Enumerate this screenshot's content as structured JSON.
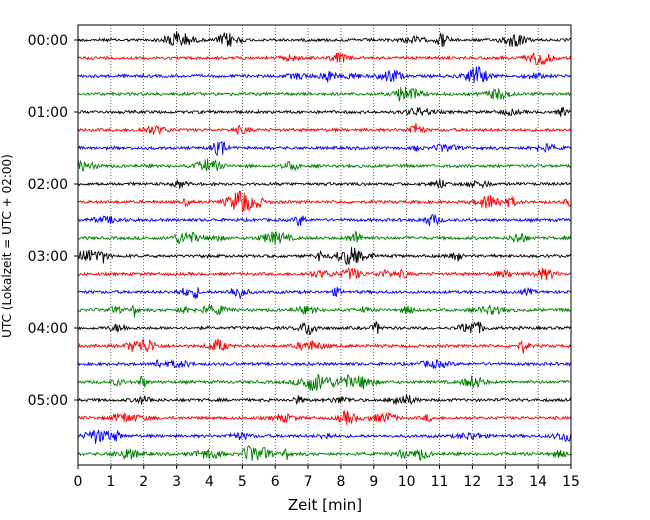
{
  "chart_data": {
    "type": "line",
    "subtype": "helicorder seismogram",
    "xlabel": "Zeit  [min]",
    "ylabel": "UTC (Lokalzeit = UTC + 02:00)",
    "xlim": [
      0,
      15
    ],
    "x_ticks": [
      "0",
      "1",
      "2",
      "3",
      "4",
      "5",
      "6",
      "7",
      "8",
      "9",
      "10",
      "11",
      "12",
      "13",
      "14",
      "15"
    ],
    "y_tick_labels": [
      "00:00",
      "01:00",
      "02:00",
      "03:00",
      "04:00",
      "05:00"
    ],
    "trace_interval_min": 15,
    "trace_count": 24,
    "trace_colors": [
      "#000000",
      "#ff0000",
      "#0000ff",
      "#008000"
    ],
    "grid": "vertical dotted lines at each minute",
    "legend": "none"
  }
}
